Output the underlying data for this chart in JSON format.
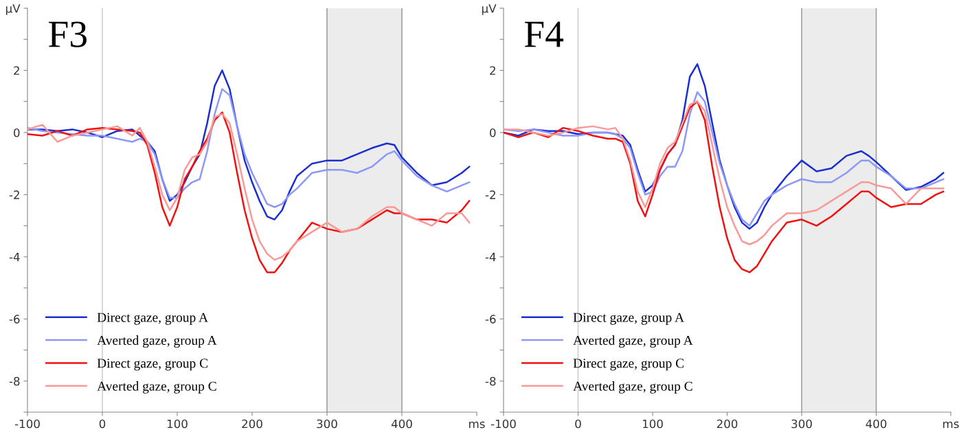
{
  "chart_data": [
    {
      "type": "line",
      "title": "F3",
      "x": [
        -100,
        -80,
        -60,
        -40,
        -20,
        0,
        20,
        40,
        50,
        60,
        70,
        80,
        90,
        100,
        110,
        120,
        130,
        140,
        150,
        160,
        170,
        180,
        190,
        200,
        210,
        220,
        230,
        240,
        250,
        260,
        280,
        300,
        320,
        340,
        360,
        380,
        390,
        400,
        420,
        440,
        460,
        480,
        490
      ],
      "series": [
        {
          "name": "Direct gaze, group A",
          "color": "#1a2fd0",
          "values": [
            0.1,
            0.1,
            0.05,
            0.1,
            0,
            -0.15,
            0.05,
            0.1,
            -0.1,
            -0.3,
            -0.6,
            -1.5,
            -2.2,
            -2.0,
            -1.6,
            -1.1,
            -0.7,
            0.3,
            1.5,
            2.0,
            1.4,
            0.2,
            -0.9,
            -1.6,
            -2.2,
            -2.7,
            -2.8,
            -2.5,
            -1.9,
            -1.4,
            -1.0,
            -0.9,
            -0.9,
            -0.7,
            -0.5,
            -0.35,
            -0.4,
            -0.8,
            -1.3,
            -1.7,
            -1.6,
            -1.3,
            -1.1
          ]
        },
        {
          "name": "Averted gaze, group A",
          "color": "#8c98f8",
          "values": [
            0.15,
            0.05,
            0,
            -0.05,
            -0.1,
            -0.1,
            -0.2,
            -0.3,
            -0.2,
            -0.3,
            -0.7,
            -1.5,
            -2.1,
            -2.1,
            -1.8,
            -1.6,
            -1.5,
            -0.6,
            0.6,
            1.4,
            1.2,
            0.2,
            -0.7,
            -1.3,
            -1.8,
            -2.3,
            -2.4,
            -2.3,
            -2.0,
            -1.8,
            -1.3,
            -1.2,
            -1.2,
            -1.3,
            -1.1,
            -0.7,
            -0.6,
            -0.9,
            -1.4,
            -1.7,
            -1.9,
            -1.7,
            -1.6
          ]
        },
        {
          "name": "Direct gaze, group C",
          "color": "#f01010",
          "values": [
            -0.05,
            -0.1,
            0.05,
            -0.1,
            0.1,
            0.15,
            0.1,
            0.05,
            0.0,
            -0.4,
            -1.3,
            -2.4,
            -3.0,
            -2.4,
            -1.5,
            -1.1,
            -0.6,
            -0.2,
            0.4,
            0.65,
            0.0,
            -1.3,
            -2.5,
            -3.4,
            -4.1,
            -4.5,
            -4.5,
            -4.2,
            -3.8,
            -3.5,
            -2.9,
            -3.1,
            -3.2,
            -3.1,
            -2.8,
            -2.5,
            -2.6,
            -2.6,
            -2.8,
            -2.8,
            -2.9,
            -2.5,
            -2.2
          ]
        },
        {
          "name": "Averted gaze, group C",
          "color": "#f89a98",
          "values": [
            0.1,
            0.25,
            -0.3,
            -0.1,
            0.0,
            0.1,
            0.2,
            -0.1,
            0.15,
            -0.3,
            -1.1,
            -2.0,
            -2.5,
            -2.1,
            -1.2,
            -0.8,
            -0.7,
            -0.3,
            0.5,
            0.6,
            0.3,
            -0.7,
            -1.8,
            -2.8,
            -3.5,
            -3.9,
            -4.1,
            -4.0,
            -3.8,
            -3.5,
            -3.2,
            -2.9,
            -3.2,
            -3.1,
            -2.7,
            -2.4,
            -2.4,
            -2.6,
            -2.8,
            -3.0,
            -2.6,
            -2.6,
            -2.9
          ]
        }
      ],
      "xlim": [
        -100,
        500
      ],
      "xticks": [
        -100,
        0,
        100,
        200,
        300,
        400,
        {
          "value": 500,
          "label": "ms"
        }
      ],
      "ylim": [
        -9,
        4
      ],
      "yticks": [
        {
          "value": -9,
          "label": null
        },
        -8,
        {
          "value": -7,
          "label": null
        },
        -6,
        {
          "value": -5,
          "label": null
        },
        -4,
        {
          "value": -3,
          "label": null
        },
        -2,
        {
          "value": -1,
          "label": null
        },
        0,
        {
          "value": 1,
          "label": null
        },
        2,
        {
          "value": 3,
          "label": null
        },
        {
          "value": 4,
          "label": "µV"
        }
      ],
      "ref_lines": [
        {
          "axis": "x",
          "value": 0,
          "color": "#d0d0d0"
        },
        {
          "axis": "x",
          "value": 300,
          "color": "#a0a0a0"
        },
        {
          "axis": "x",
          "value": 400,
          "color": "#a0a0a0"
        }
      ],
      "bands": [
        {
          "axis": "x",
          "from": 300,
          "to": 400,
          "color": "#ececec"
        }
      ],
      "legend": "bottom left",
      "grid": false
    },
    {
      "type": "line",
      "title": "F4",
      "x": [
        -100,
        -80,
        -60,
        -40,
        -20,
        0,
        20,
        40,
        50,
        60,
        70,
        80,
        90,
        100,
        110,
        120,
        130,
        140,
        150,
        160,
        170,
        180,
        190,
        200,
        210,
        220,
        230,
        240,
        250,
        260,
        280,
        300,
        320,
        340,
        360,
        380,
        390,
        400,
        420,
        440,
        460,
        480,
        490
      ],
      "series": [
        {
          "name": "Direct gaze, group A",
          "color": "#1a2fd0",
          "values": [
            0,
            -0.1,
            0.1,
            0.05,
            0.05,
            -0.05,
            0.0,
            0.0,
            -0.05,
            -0.1,
            -0.4,
            -1.2,
            -1.9,
            -1.7,
            -1.2,
            -0.7,
            -0.4,
            0.4,
            1.8,
            2.2,
            1.5,
            0.3,
            -0.9,
            -1.7,
            -2.4,
            -2.9,
            -3.1,
            -2.9,
            -2.4,
            -2.0,
            -1.4,
            -0.9,
            -1.25,
            -1.15,
            -0.75,
            -0.6,
            -0.75,
            -0.95,
            -1.4,
            -1.85,
            -1.75,
            -1.5,
            -1.3
          ]
        },
        {
          "name": "Averted gaze, group A",
          "color": "#8c98f8",
          "values": [
            0.1,
            0.05,
            0.1,
            0.0,
            -0.1,
            -0.1,
            0.0,
            0.0,
            -0.05,
            -0.2,
            -0.5,
            -1.3,
            -2.0,
            -1.9,
            -1.4,
            -1.1,
            -1.1,
            -0.6,
            0.6,
            1.3,
            1.0,
            0.0,
            -1.0,
            -1.7,
            -2.3,
            -2.8,
            -3.0,
            -2.6,
            -2.2,
            -2.0,
            -1.7,
            -1.5,
            -1.6,
            -1.6,
            -1.3,
            -0.9,
            -0.9,
            -1.1,
            -1.4,
            -1.8,
            -1.8,
            -1.6,
            -1.5
          ]
        },
        {
          "name": "Direct gaze, group C",
          "color": "#f01010",
          "values": [
            0.0,
            -0.15,
            0.0,
            -0.15,
            0.15,
            0.05,
            -0.1,
            -0.2,
            -0.2,
            -0.3,
            -1.0,
            -2.2,
            -2.7,
            -2.0,
            -1.2,
            -0.7,
            -0.4,
            0.2,
            0.8,
            1.0,
            0.4,
            -1.1,
            -2.4,
            -3.4,
            -4.1,
            -4.4,
            -4.5,
            -4.3,
            -3.9,
            -3.5,
            -2.9,
            -2.8,
            -3.0,
            -2.7,
            -2.3,
            -1.9,
            -1.9,
            -2.1,
            -2.4,
            -2.3,
            -2.3,
            -2.0,
            -1.9
          ]
        },
        {
          "name": "Averted gaze, group C",
          "color": "#f89a98",
          "values": [
            0.1,
            0.1,
            0.0,
            -0.1,
            0.0,
            0.15,
            0.2,
            0.1,
            0.15,
            -0.2,
            -0.9,
            -1.9,
            -2.4,
            -1.8,
            -1.0,
            -0.5,
            -0.3,
            0.3,
            0.9,
            1.0,
            0.7,
            -0.4,
            -1.5,
            -2.4,
            -3.0,
            -3.5,
            -3.6,
            -3.5,
            -3.3,
            -3.0,
            -2.6,
            -2.6,
            -2.5,
            -2.2,
            -1.9,
            -1.6,
            -1.6,
            -1.7,
            -1.8,
            -2.3,
            -1.8,
            -1.8,
            -1.8
          ]
        }
      ],
      "xlim": [
        -100,
        500
      ],
      "xticks": [
        -100,
        0,
        100,
        200,
        300,
        400,
        {
          "value": 500,
          "label": "ms"
        }
      ],
      "ylim": [
        -9,
        4
      ],
      "yticks": [
        {
          "value": -9,
          "label": null
        },
        -8,
        {
          "value": -7,
          "label": null
        },
        -6,
        {
          "value": -5,
          "label": null
        },
        -4,
        {
          "value": -3,
          "label": null
        },
        -2,
        {
          "value": -1,
          "label": null
        },
        0,
        {
          "value": 1,
          "label": null
        },
        2,
        {
          "value": 3,
          "label": null
        },
        {
          "value": 4,
          "label": "µV"
        }
      ],
      "ref_lines": [
        {
          "axis": "x",
          "value": 0,
          "color": "#d0d0d0"
        },
        {
          "axis": "x",
          "value": 300,
          "color": "#a0a0a0"
        },
        {
          "axis": "x",
          "value": 400,
          "color": "#a0a0a0"
        }
      ],
      "bands": [
        {
          "axis": "x",
          "from": 300,
          "to": 400,
          "color": "#ececec"
        }
      ],
      "legend": "bottom left",
      "grid": false
    }
  ]
}
